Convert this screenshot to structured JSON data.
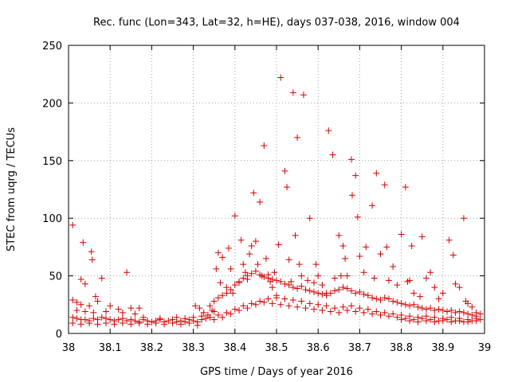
{
  "chart_data": {
    "type": "scatter",
    "title": "Rec. func (Lon=343, Lat=32, h=HE), days 037-038, 2016, window 004",
    "xlabel": "GPS time / Days of year 2016",
    "ylabel": "STEC from uqrg / TECUs",
    "xlim": [
      38.0,
      39.0
    ],
    "ylim": [
      0,
      250
    ],
    "x_ticks": [
      38.0,
      38.1,
      38.2,
      38.3,
      38.4,
      38.5,
      38.6,
      38.7,
      38.8,
      38.9,
      39.0
    ],
    "x_tick_labels": [
      "38",
      "38.1",
      "38.2",
      "38.3",
      "38.4",
      "38.5",
      "38.6",
      "38.7",
      "38.8",
      "38.9",
      "39"
    ],
    "y_ticks": [
      0,
      50,
      100,
      150,
      200,
      250
    ],
    "y_tick_labels": [
      "0",
      "50",
      "100",
      "150",
      "200",
      "250"
    ],
    "grid": true,
    "marker": "+",
    "color": "#d40000",
    "series": [
      {
        "name": "STEC",
        "points": [
          [
            38.01,
            94
          ],
          [
            38.035,
            79
          ],
          [
            38.055,
            71
          ],
          [
            38.057,
            64
          ],
          [
            38.03,
            47
          ],
          [
            38.04,
            43
          ],
          [
            38.08,
            48
          ],
          [
            38.14,
            53
          ],
          [
            38.065,
            32
          ],
          [
            38.07,
            28
          ],
          [
            38.01,
            29
          ],
          [
            38.02,
            27
          ],
          [
            38.03,
            25
          ],
          [
            38.05,
            24
          ],
          [
            38.1,
            24
          ],
          [
            38.12,
            21
          ],
          [
            38.15,
            22
          ],
          [
            38.17,
            22
          ],
          [
            38.02,
            20
          ],
          [
            38.04,
            19
          ],
          [
            38.06,
            18
          ],
          [
            38.09,
            19
          ],
          [
            38.13,
            18
          ],
          [
            38.16,
            17
          ],
          [
            38.01,
            14
          ],
          [
            38.02,
            13
          ],
          [
            38.03,
            12
          ],
          [
            38.04,
            12
          ],
          [
            38.05,
            11
          ],
          [
            38.06,
            13
          ],
          [
            38.07,
            12
          ],
          [
            38.08,
            14
          ],
          [
            38.09,
            13
          ],
          [
            38.1,
            12
          ],
          [
            38.11,
            11
          ],
          [
            38.12,
            12
          ],
          [
            38.13,
            13
          ],
          [
            38.14,
            11
          ],
          [
            38.15,
            12
          ],
          [
            38.16,
            11
          ],
          [
            38.17,
            10
          ],
          [
            38.18,
            12
          ],
          [
            38.19,
            11
          ],
          [
            38.2,
            10
          ],
          [
            38.21,
            11
          ],
          [
            38.22,
            12
          ],
          [
            38.23,
            10
          ],
          [
            38.24,
            11
          ],
          [
            38.25,
            12
          ],
          [
            38.26,
            10
          ],
          [
            38.27,
            11
          ],
          [
            38.28,
            10
          ],
          [
            38.29,
            12
          ],
          [
            38.3,
            11
          ],
          [
            38.31,
            10
          ],
          [
            38.32,
            12
          ],
          [
            38.01,
            9
          ],
          [
            38.03,
            8
          ],
          [
            38.05,
            9
          ],
          [
            38.07,
            8
          ],
          [
            38.09,
            9
          ],
          [
            38.11,
            8
          ],
          [
            38.13,
            9
          ],
          [
            38.15,
            8
          ],
          [
            38.17,
            9
          ],
          [
            38.19,
            8
          ],
          [
            38.21,
            9
          ],
          [
            38.23,
            8
          ],
          [
            38.25,
            9
          ],
          [
            38.27,
            8
          ],
          [
            38.29,
            9
          ],
          [
            38.31,
            7
          ],
          [
            38.18,
            14
          ],
          [
            38.22,
            13
          ],
          [
            38.26,
            14
          ],
          [
            38.28,
            13
          ],
          [
            38.3,
            14
          ],
          [
            38.32,
            15
          ],
          [
            38.33,
            13
          ],
          [
            38.305,
            24
          ],
          [
            38.315,
            22
          ],
          [
            38.325,
            18
          ],
          [
            38.335,
            16
          ],
          [
            38.34,
            24
          ],
          [
            38.345,
            20
          ],
          [
            38.35,
            19
          ],
          [
            38.355,
            56
          ],
          [
            38.36,
            70
          ],
          [
            38.365,
            44
          ],
          [
            38.37,
            66
          ],
          [
            38.38,
            40
          ],
          [
            38.385,
            74
          ],
          [
            38.39,
            56
          ],
          [
            38.395,
            35
          ],
          [
            38.4,
            102
          ],
          [
            38.41,
            44
          ],
          [
            38.415,
            81
          ],
          [
            38.42,
            60
          ],
          [
            38.425,
            53
          ],
          [
            38.43,
            47
          ],
          [
            38.435,
            69
          ],
          [
            38.44,
            76
          ],
          [
            38.445,
            122
          ],
          [
            38.45,
            80
          ],
          [
            38.455,
            60
          ],
          [
            38.46,
            114
          ],
          [
            38.465,
            50
          ],
          [
            38.47,
            163
          ],
          [
            38.475,
            65
          ],
          [
            38.48,
            51
          ],
          [
            38.485,
            45
          ],
          [
            38.49,
            40
          ],
          [
            38.495,
            53
          ],
          [
            38.5,
            33
          ],
          [
            38.505,
            77
          ],
          [
            38.51,
            222
          ],
          [
            38.52,
            141
          ],
          [
            38.525,
            127
          ],
          [
            38.53,
            64
          ],
          [
            38.535,
            45
          ],
          [
            38.54,
            209
          ],
          [
            38.545,
            85
          ],
          [
            38.55,
            170
          ],
          [
            38.555,
            60
          ],
          [
            38.56,
            50
          ],
          [
            38.565,
            207
          ],
          [
            38.575,
            46
          ],
          [
            38.58,
            100
          ],
          [
            38.59,
            44
          ],
          [
            38.595,
            60
          ],
          [
            38.6,
            50
          ],
          [
            38.61,
            42
          ],
          [
            38.62,
            35
          ],
          [
            38.625,
            176
          ],
          [
            38.635,
            155
          ],
          [
            38.64,
            48
          ],
          [
            38.65,
            85
          ],
          [
            38.655,
            50
          ],
          [
            38.66,
            76
          ],
          [
            38.665,
            65
          ],
          [
            38.67,
            50
          ],
          [
            38.68,
            151
          ],
          [
            38.682,
            120
          ],
          [
            38.69,
            137
          ],
          [
            38.695,
            101
          ],
          [
            38.7,
            67
          ],
          [
            38.71,
            53
          ],
          [
            38.715,
            75
          ],
          [
            38.73,
            111
          ],
          [
            38.735,
            48
          ],
          [
            38.74,
            139
          ],
          [
            38.75,
            69
          ],
          [
            38.76,
            129
          ],
          [
            38.765,
            75
          ],
          [
            38.77,
            46
          ],
          [
            38.78,
            58
          ],
          [
            38.79,
            42
          ],
          [
            38.8,
            86
          ],
          [
            38.81,
            127
          ],
          [
            38.815,
            45
          ],
          [
            38.82,
            46
          ],
          [
            38.825,
            76
          ],
          [
            38.83,
            35
          ],
          [
            38.845,
            32
          ],
          [
            38.85,
            84
          ],
          [
            38.86,
            48
          ],
          [
            38.87,
            53
          ],
          [
            38.88,
            40
          ],
          [
            38.89,
            30
          ],
          [
            38.9,
            35
          ],
          [
            38.915,
            81
          ],
          [
            38.925,
            68
          ],
          [
            38.93,
            43
          ],
          [
            38.94,
            40
          ],
          [
            38.95,
            100
          ],
          [
            38.955,
            28
          ],
          [
            38.96,
            26
          ],
          [
            38.97,
            23
          ],
          [
            38.98,
            18
          ],
          [
            38.99,
            17
          ],
          [
            38.35,
            28
          ],
          [
            38.36,
            31
          ],
          [
            38.37,
            33
          ],
          [
            38.38,
            35
          ],
          [
            38.39,
            38
          ],
          [
            38.4,
            42
          ],
          [
            38.41,
            45
          ],
          [
            38.42,
            48
          ],
          [
            38.43,
            50
          ],
          [
            38.44,
            52
          ],
          [
            38.45,
            54
          ],
          [
            38.46,
            51
          ],
          [
            38.47,
            49
          ],
          [
            38.48,
            48
          ],
          [
            38.49,
            47
          ],
          [
            38.5,
            46
          ],
          [
            38.51,
            45
          ],
          [
            38.52,
            43
          ],
          [
            38.53,
            42
          ],
          [
            38.54,
            40
          ],
          [
            38.55,
            39
          ],
          [
            38.56,
            41
          ],
          [
            38.57,
            38
          ],
          [
            38.58,
            37
          ],
          [
            38.59,
            36
          ],
          [
            38.6,
            35
          ],
          [
            38.61,
            34
          ],
          [
            38.62,
            33
          ],
          [
            38.63,
            35
          ],
          [
            38.64,
            37
          ],
          [
            38.65,
            38
          ],
          [
            38.66,
            40
          ],
          [
            38.67,
            39
          ],
          [
            38.68,
            37
          ],
          [
            38.69,
            35
          ],
          [
            38.7,
            36
          ],
          [
            38.71,
            34
          ],
          [
            38.72,
            33
          ],
          [
            38.73,
            31
          ],
          [
            38.74,
            30
          ],
          [
            38.75,
            29
          ],
          [
            38.76,
            31
          ],
          [
            38.77,
            30
          ],
          [
            38.78,
            28
          ],
          [
            38.79,
            27
          ],
          [
            38.8,
            26
          ],
          [
            38.81,
            25
          ],
          [
            38.82,
            24
          ],
          [
            38.83,
            25
          ],
          [
            38.84,
            23
          ],
          [
            38.85,
            22
          ],
          [
            38.86,
            21
          ],
          [
            38.87,
            22
          ],
          [
            38.88,
            20
          ],
          [
            38.89,
            21
          ],
          [
            38.9,
            20
          ],
          [
            38.91,
            19
          ],
          [
            38.92,
            20
          ],
          [
            38.93,
            18
          ],
          [
            38.94,
            19
          ],
          [
            38.95,
            18
          ],
          [
            38.96,
            17
          ],
          [
            38.97,
            16
          ],
          [
            38.98,
            15
          ],
          [
            38.34,
            14
          ],
          [
            38.36,
            16
          ],
          [
            38.38,
            18
          ],
          [
            38.4,
            21
          ],
          [
            38.42,
            24
          ],
          [
            38.44,
            26
          ],
          [
            38.46,
            28
          ],
          [
            38.48,
            30
          ],
          [
            38.5,
            31
          ],
          [
            38.52,
            30
          ],
          [
            38.54,
            29
          ],
          [
            38.56,
            28
          ],
          [
            38.58,
            26
          ],
          [
            38.6,
            25
          ],
          [
            38.62,
            24
          ],
          [
            38.64,
            22
          ],
          [
            38.66,
            23
          ],
          [
            38.68,
            24
          ],
          [
            38.7,
            22
          ],
          [
            38.72,
            21
          ],
          [
            38.74,
            19
          ],
          [
            38.76,
            18
          ],
          [
            38.78,
            17
          ],
          [
            38.8,
            16
          ],
          [
            38.82,
            15
          ],
          [
            38.84,
            14
          ],
          [
            38.86,
            15
          ],
          [
            38.88,
            14
          ],
          [
            38.9,
            13
          ],
          [
            38.92,
            14
          ],
          [
            38.94,
            13
          ],
          [
            38.96,
            12
          ],
          [
            38.98,
            13
          ],
          [
            38.35,
            12
          ],
          [
            38.37,
            14
          ],
          [
            38.39,
            17
          ],
          [
            38.41,
            20
          ],
          [
            38.43,
            22
          ],
          [
            38.45,
            25
          ],
          [
            38.47,
            27
          ],
          [
            38.49,
            26
          ],
          [
            38.51,
            25
          ],
          [
            38.53,
            24
          ],
          [
            38.55,
            23
          ],
          [
            38.57,
            22
          ],
          [
            38.59,
            21
          ],
          [
            38.61,
            20
          ],
          [
            38.63,
            19
          ],
          [
            38.65,
            18
          ],
          [
            38.67,
            20
          ],
          [
            38.69,
            19
          ],
          [
            38.71,
            18
          ],
          [
            38.73,
            17
          ],
          [
            38.75,
            16
          ],
          [
            38.77,
            15
          ],
          [
            38.79,
            14
          ],
          [
            38.81,
            13
          ],
          [
            38.83,
            12
          ],
          [
            38.85,
            13
          ],
          [
            38.87,
            12
          ],
          [
            38.89,
            11
          ],
          [
            38.91,
            12
          ],
          [
            38.93,
            11
          ],
          [
            38.95,
            10
          ],
          [
            38.97,
            11
          ],
          [
            38.99,
            12
          ],
          [
            38.8,
            12
          ],
          [
            38.82,
            11
          ],
          [
            38.84,
            10
          ],
          [
            38.86,
            11
          ],
          [
            38.88,
            10
          ],
          [
            38.9,
            11
          ],
          [
            38.92,
            10
          ],
          [
            38.94,
            11
          ],
          [
            38.96,
            10
          ],
          [
            38.98,
            11
          ]
        ]
      }
    ]
  }
}
